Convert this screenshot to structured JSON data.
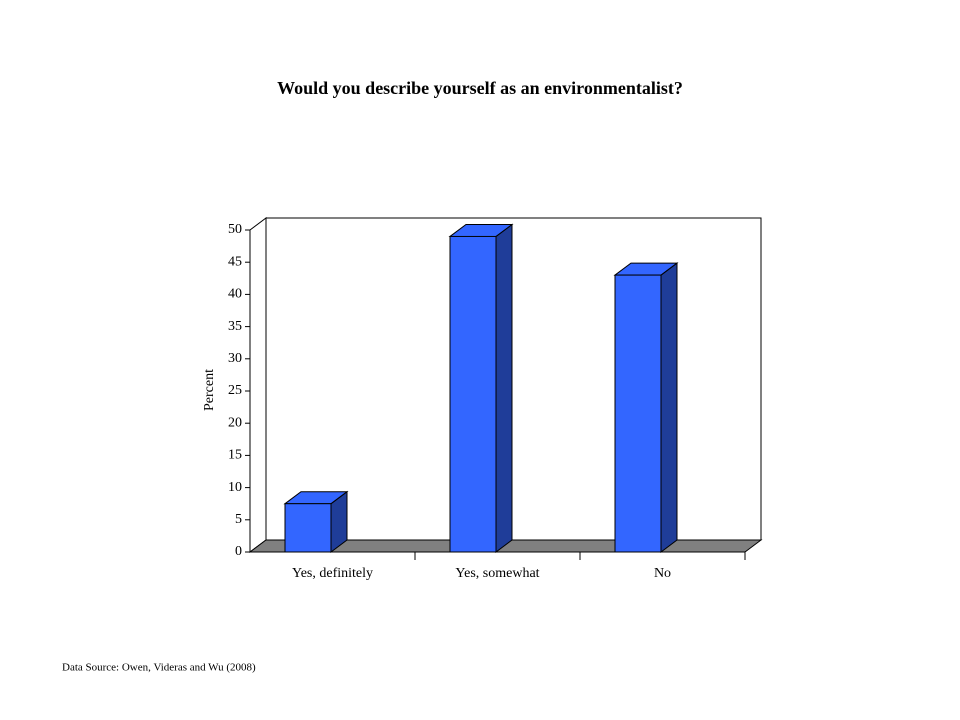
{
  "chart_data": {
    "type": "bar3d",
    "title": "Would you describe yourself as an environmentalist?",
    "y_label": "Percent",
    "source": "Data Source: Owen, Videras and Wu (2008)",
    "categories": [
      "Yes, definitely",
      "Yes, somewhat",
      "No"
    ],
    "values": [
      7.5,
      49,
      43
    ],
    "color": "#3366ff",
    "ylim": [
      0,
      50
    ],
    "yticks": [
      0,
      5,
      10,
      15,
      20,
      25,
      30,
      35,
      40,
      45,
      50
    ],
    "grid": false
  }
}
